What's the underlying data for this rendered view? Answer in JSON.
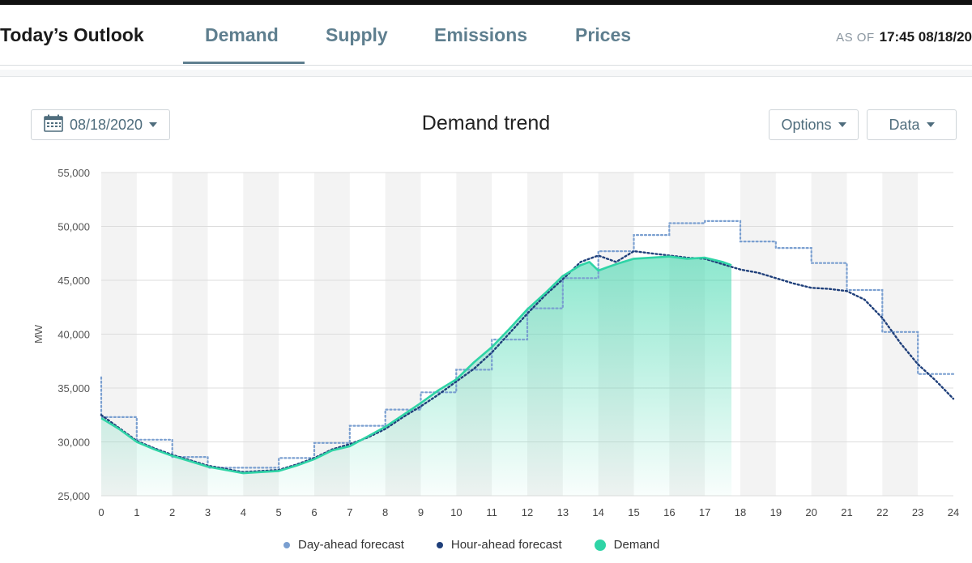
{
  "header": {
    "title": "Today’s Outlook",
    "tabs": [
      {
        "label": "Demand",
        "active": true
      },
      {
        "label": "Supply",
        "active": false
      },
      {
        "label": "Emissions",
        "active": false
      },
      {
        "label": "Prices",
        "active": false
      }
    ],
    "as_of_label": "AS OF",
    "as_of_value": "17:45 08/18/20"
  },
  "controls": {
    "date": "08/18/2020",
    "options_label": "Options",
    "data_label": "Data"
  },
  "colors": {
    "accent": "#5f7f8f",
    "demand": "#2fd4a6",
    "day_ahead": "#7a9fd0",
    "hour_ahead": "#1f3f7a"
  },
  "chart_data": {
    "type": "line",
    "title": "Demand trend",
    "ylabel": "MW",
    "xlabel": "",
    "xlim": [
      0,
      24
    ],
    "ylim": [
      25000,
      55000
    ],
    "x_ticks": [
      "0",
      "1",
      "2",
      "3",
      "4",
      "5",
      "6",
      "7",
      "8",
      "9",
      "10",
      "11",
      "12",
      "13",
      "14",
      "15",
      "16",
      "17",
      "18",
      "19",
      "20",
      "21",
      "22",
      "23",
      "24"
    ],
    "y_ticks": [
      "25,000",
      "30,000",
      "35,000",
      "40,000",
      "45,000",
      "50,000",
      "55,000"
    ],
    "grid": true,
    "legend_position": "bottom",
    "series": [
      {
        "name": "Day-ahead forecast",
        "style": "dotted-step",
        "x": [
          0,
          1,
          2,
          3,
          4,
          5,
          6,
          7,
          8,
          9,
          10,
          11,
          12,
          13,
          14,
          15,
          16,
          17,
          18,
          19,
          20,
          21,
          22,
          23,
          24
        ],
        "y": [
          36000,
          32300,
          30200,
          28600,
          27600,
          27600,
          28500,
          29900,
          31500,
          33000,
          34600,
          36700,
          39500,
          42400,
          45200,
          47700,
          49200,
          50300,
          50500,
          48600,
          48000,
          46600,
          44100,
          40200,
          36300
        ]
      },
      {
        "name": "Hour-ahead forecast",
        "style": "dotted",
        "x": [
          0,
          0.5,
          1,
          1.5,
          2,
          2.5,
          3,
          3.5,
          4,
          4.5,
          5,
          5.5,
          6,
          6.5,
          7,
          7.5,
          8,
          8.5,
          9,
          9.5,
          10,
          10.5,
          11,
          11.5,
          12,
          12.5,
          13,
          13.5,
          14,
          14.5,
          15,
          15.5,
          16,
          16.5,
          17,
          17.5,
          18,
          18.5,
          19,
          19.5,
          20,
          20.5,
          21,
          21.5,
          22,
          22.5,
          23,
          23.5,
          24
        ],
        "y": [
          32500,
          31300,
          30100,
          29400,
          28800,
          28300,
          27800,
          27500,
          27200,
          27300,
          27400,
          27900,
          28500,
          29300,
          29800,
          30400,
          31200,
          32300,
          33300,
          34400,
          35600,
          36800,
          38300,
          40100,
          41900,
          43600,
          45100,
          46700,
          47300,
          46700,
          47700,
          47500,
          47300,
          47100,
          47000,
          46500,
          46000,
          45700,
          45200,
          44700,
          44300,
          44200,
          44000,
          43200,
          41500,
          39200,
          37200,
          35700,
          34000
        ]
      },
      {
        "name": "Demand",
        "style": "solid-area",
        "x": [
          0,
          0.5,
          1,
          1.5,
          2,
          2.5,
          3,
          3.5,
          4,
          4.5,
          5,
          5.5,
          6,
          6.5,
          7,
          7.5,
          8,
          8.5,
          9,
          9.5,
          10,
          10.5,
          11,
          11.5,
          12,
          12.5,
          13,
          13.5,
          13.75,
          14,
          14.25,
          14.5,
          15,
          15.5,
          16,
          16.5,
          17,
          17.5,
          17.75
        ],
        "y": [
          32200,
          31200,
          30000,
          29300,
          28700,
          28200,
          27700,
          27400,
          27100,
          27200,
          27300,
          27800,
          28400,
          29200,
          29600,
          30500,
          31400,
          32500,
          33600,
          34800,
          35800,
          37400,
          38800,
          40500,
          42300,
          43800,
          45400,
          46400,
          46700,
          45900,
          46200,
          46500,
          47000,
          47100,
          47200,
          47000,
          47100,
          46700,
          46400
        ]
      }
    ]
  }
}
